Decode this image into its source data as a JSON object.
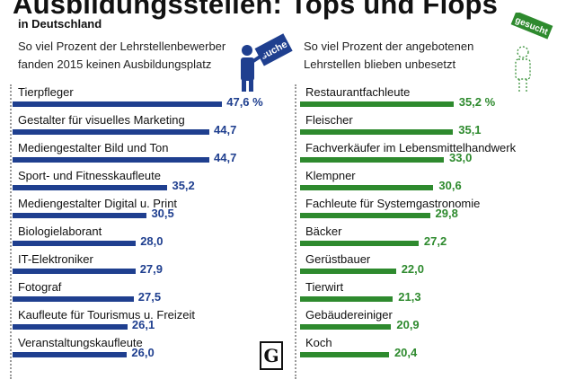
{
  "header": {
    "title": "Ausbildungsstellen: Tops und Flops",
    "subtitle": "in Deutschland"
  },
  "left": {
    "description": "So viel Prozent der Lehrstellenbewerber fanden 2015 keinen Ausbildungsplatz",
    "sign_text": "suche",
    "color": "#1f3f8f"
  },
  "right": {
    "description": "So viel Prozent der angebotenen Lehrstellen blieben unbesetzt",
    "sign_text": "gesucht",
    "color": "#2e8a2e"
  },
  "logo": {
    "text": "G"
  },
  "chart_data": [
    {
      "type": "bar",
      "orientation": "horizontal",
      "categories": [
        "Tierpfleger",
        "Gestalter für visuelles Marketing",
        "Mediengestalter Bild und Ton",
        "Sport- und Fitnesskaufleute",
        "Mediengestalter Digital u. Print",
        "Biologielaborant",
        "IT-Elektroniker",
        "Fotograf",
        "Kaufleute für Tourismus u. Freizeit",
        "Veranstaltungskaufleute"
      ],
      "values": [
        47.6,
        44.7,
        44.7,
        35.2,
        30.5,
        28.0,
        27.9,
        27.5,
        26.1,
        26.0
      ],
      "labels": [
        "47,6 %",
        "44,7",
        "44,7",
        "35,2",
        "30,5",
        "28,0",
        "27,9",
        "27,5",
        "26,1",
        "26,0"
      ],
      "color": "#1f3f8f"
    },
    {
      "type": "bar",
      "orientation": "horizontal",
      "categories": [
        "Restaurantfachleute",
        "Fleischer",
        "Fachverkäufer im Lebensmittelhandwerk",
        "Klempner",
        "Fachleute für Systemgastronomie",
        "Bäcker",
        "Gerüstbauer",
        "Tierwirt",
        "Gebäudereiniger",
        "Koch"
      ],
      "values": [
        35.2,
        35.1,
        33.0,
        30.6,
        29.8,
        27.2,
        22.0,
        21.3,
        20.9,
        20.4
      ],
      "labels": [
        "35,2 %",
        "35,1",
        "33,0",
        "30,6",
        "29,8",
        "27,2",
        "22,0",
        "21,3",
        "20,9",
        "20,4"
      ],
      "color": "#2e8a2e"
    }
  ]
}
